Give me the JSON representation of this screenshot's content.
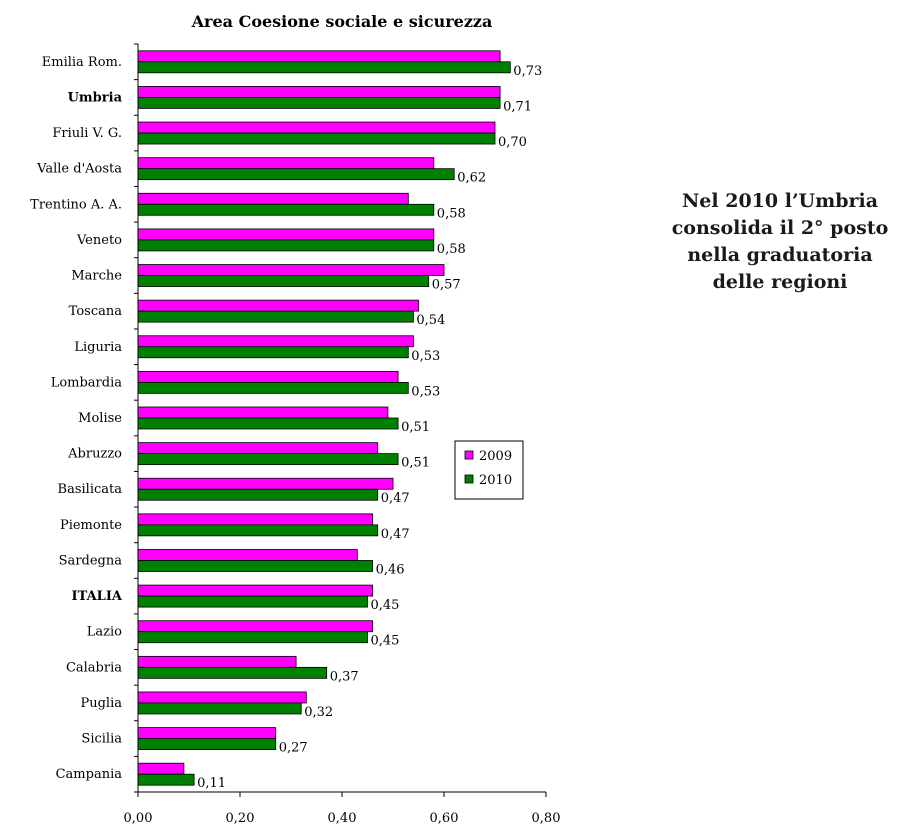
{
  "chart_data": {
    "type": "bar",
    "orientation": "horizontal",
    "title": "Area Coesione sociale e sicurezza",
    "categories": [
      "Emilia Rom.",
      "Umbria",
      "Friuli V. G.",
      "Valle d'Aosta",
      "Trentino A. A.",
      "Veneto",
      "Marche",
      "Toscana",
      "Liguria",
      "Lombardia",
      "Molise",
      "Abruzzo",
      "Basilicata",
      "Piemonte",
      "Sardegna",
      "ITALIA",
      "Lazio",
      "Calabria",
      "Puglia",
      "Sicilia",
      "Campania"
    ],
    "bold_categories": [
      "Umbria",
      "ITALIA"
    ],
    "series": [
      {
        "name": "2009",
        "color": "#ff00ff",
        "values": [
          0.71,
          0.71,
          0.7,
          0.58,
          0.53,
          0.58,
          0.6,
          0.55,
          0.54,
          0.51,
          0.49,
          0.47,
          0.5,
          0.46,
          0.43,
          0.46,
          0.46,
          0.31,
          0.33,
          0.27,
          0.09
        ]
      },
      {
        "name": "2010",
        "color": "#008000",
        "values": [
          0.73,
          0.71,
          0.7,
          0.62,
          0.58,
          0.58,
          0.57,
          0.54,
          0.53,
          0.53,
          0.51,
          0.51,
          0.47,
          0.47,
          0.46,
          0.45,
          0.45,
          0.37,
          0.32,
          0.27,
          0.11
        ]
      }
    ],
    "data_labels_series": "2010",
    "data_labels": [
      "0,73",
      "0,71",
      "0,70",
      "0,62",
      "0,58",
      "0,58",
      "0,57",
      "0,54",
      "0,53",
      "0,53",
      "0,51",
      "0,51",
      "0,47",
      "0,47",
      "0,46",
      "0,45",
      "0,45",
      "0,37",
      "0,32",
      "0,27",
      "0,11"
    ],
    "xlim": [
      0,
      0.8
    ],
    "xticks": [
      0,
      0.2,
      0.4,
      0.6,
      0.8
    ],
    "xtick_labels": [
      "0,00",
      "0,20",
      "0,40",
      "0,60",
      "0,80"
    ],
    "grid": false,
    "legend_position": "right"
  },
  "side_note": "Nel 2010 l’Umbria consolida il 2° posto nella graduatoria delle regioni"
}
